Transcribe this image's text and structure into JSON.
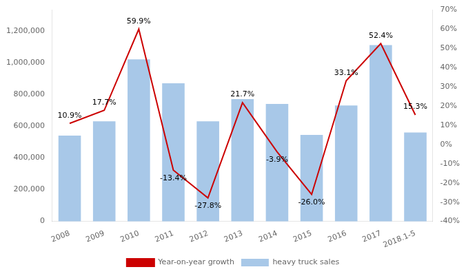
{
  "chart_data": {
    "type": "bar",
    "categories": [
      "2008",
      "2009",
      "2010",
      "2011",
      "2012",
      "2013",
      "2014",
      "2015",
      "2016",
      "2017",
      "2018.1-5"
    ],
    "series": [
      {
        "name": "heavy truck sales",
        "type": "bar",
        "color": "#a8c8e8",
        "values": [
          540000,
          630000,
          1020000,
          870000,
          630000,
          770000,
          740000,
          545000,
          730000,
          1110000,
          560000
        ]
      },
      {
        "name": "Year-on-year growth",
        "type": "line",
        "axis": "y2",
        "color": "#cc0000",
        "data_labels": true,
        "values": [
          10.9,
          17.7,
          59.9,
          -13.4,
          -27.8,
          21.7,
          -3.9,
          -26.0,
          33.1,
          52.4,
          15.3
        ],
        "value_labels": [
          "10.9%",
          "17.7%",
          "59.9%",
          "-13.4%",
          "-27.8%",
          "21.7%",
          "-3.9%",
          "-26.0%",
          "33.1%",
          "52.4%",
          "15.3%"
        ]
      }
    ],
    "ylim": [
      0,
      1333333
    ],
    "yticks": [
      0,
      {
        "value": 200000,
        "label": "200,000"
      },
      {
        "value": 400000,
        "label": "400,000"
      },
      {
        "value": 600000,
        "label": "600,000"
      },
      {
        "value": 800000,
        "label": "800,000"
      },
      {
        "value": 1000000,
        "label": "1,000,000"
      },
      {
        "value": 1200000,
        "label": "1,200,000"
      }
    ],
    "y2lim": [
      -40,
      70
    ],
    "y2ticks": [
      {
        "value": -40,
        "label": "-40%"
      },
      {
        "value": -30,
        "label": "-30%"
      },
      {
        "value": -20,
        "label": "-20%"
      },
      {
        "value": -10,
        "label": "-10%"
      },
      {
        "value": 0,
        "label": "0%"
      },
      {
        "value": 10,
        "label": "10%"
      },
      {
        "value": 20,
        "label": "20%"
      },
      {
        "value": 30,
        "label": "30%"
      },
      {
        "value": 40,
        "label": "40%"
      },
      {
        "value": 50,
        "label": "50%"
      },
      {
        "value": 60,
        "label": "60%"
      },
      {
        "value": 70,
        "label": "70%"
      }
    ],
    "grid": false,
    "legend": "bottom"
  }
}
